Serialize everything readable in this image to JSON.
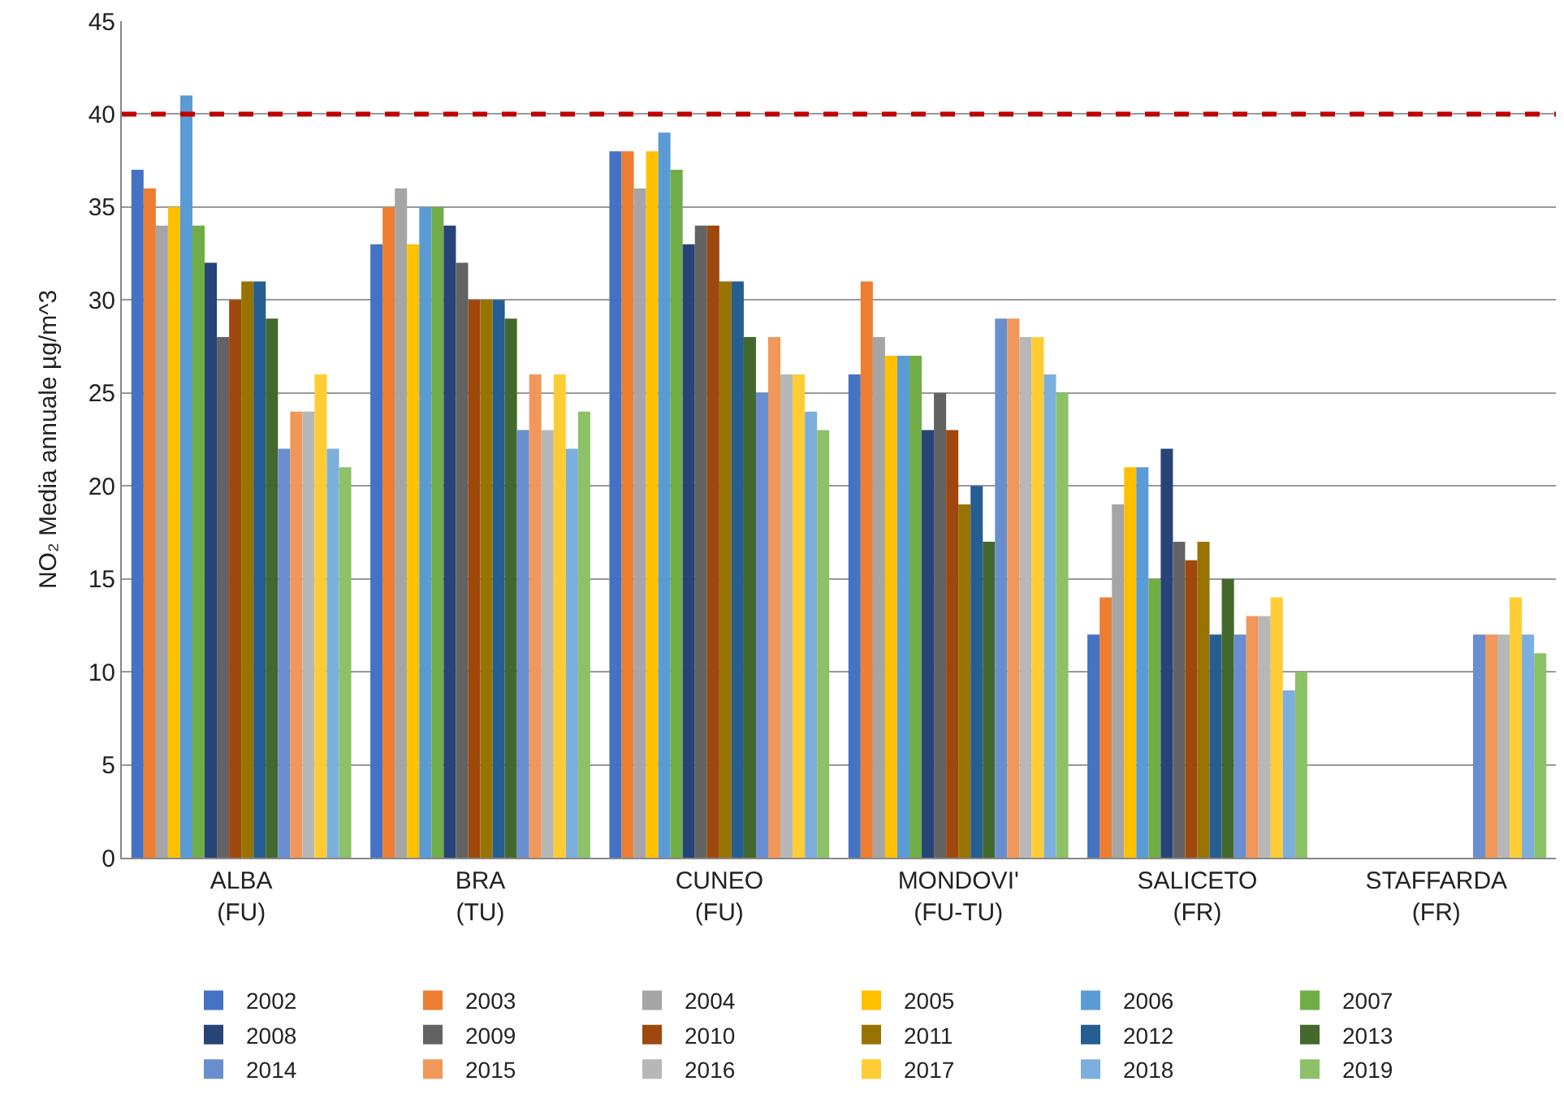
{
  "chart_data": {
    "type": "bar",
    "ylabel": "NO₂ Media annuale µg/m^3",
    "categories": [
      "ALBA\n(FU)",
      "BRA\n(TU)",
      "CUNEO\n(FU)",
      "MONDOVI'\n(FU-TU)",
      "SALICETO\n(FR)",
      "STAFFARDA\n(FR)"
    ],
    "series": [
      {
        "name": "2002",
        "color": "#4472c4",
        "values": [
          37,
          33,
          38,
          26,
          12,
          null
        ]
      },
      {
        "name": "2003",
        "color": "#ed7d31",
        "values": [
          36,
          35,
          38,
          31,
          14,
          null
        ]
      },
      {
        "name": "2004",
        "color": "#a5a5a5",
        "values": [
          34,
          36,
          36,
          28,
          19,
          null
        ]
      },
      {
        "name": "2005",
        "color": "#ffc000",
        "values": [
          35,
          33,
          38,
          27,
          21,
          null
        ]
      },
      {
        "name": "2006",
        "color": "#5b9bd5",
        "values": [
          41,
          35,
          39,
          27,
          21,
          null
        ]
      },
      {
        "name": "2007",
        "color": "#70ad47",
        "values": [
          34,
          35,
          37,
          27,
          15,
          null
        ]
      },
      {
        "name": "2008",
        "color": "#264478",
        "values": [
          32,
          34,
          33,
          23,
          22,
          null
        ]
      },
      {
        "name": "2009",
        "color": "#636363",
        "values": [
          28,
          32,
          34,
          25,
          17,
          null
        ]
      },
      {
        "name": "2010",
        "color": "#9e480e",
        "values": [
          30,
          30,
          34,
          23,
          16,
          null
        ]
      },
      {
        "name": "2011",
        "color": "#997300",
        "values": [
          31,
          30,
          31,
          19,
          17,
          null
        ]
      },
      {
        "name": "2012",
        "color": "#255e91",
        "values": [
          31,
          30,
          31,
          20,
          12,
          null
        ]
      },
      {
        "name": "2013",
        "color": "#43682b",
        "values": [
          29,
          29,
          28,
          17,
          15,
          null
        ]
      },
      {
        "name": "2014",
        "color": "#698ed0",
        "values": [
          22,
          23,
          25,
          29,
          12,
          12
        ]
      },
      {
        "name": "2015",
        "color": "#f1975a",
        "values": [
          24,
          26,
          28,
          29,
          13,
          12
        ]
      },
      {
        "name": "2016",
        "color": "#b7b7b7",
        "values": [
          24,
          23,
          26,
          28,
          13,
          12
        ]
      },
      {
        "name": "2017",
        "color": "#ffcd33",
        "values": [
          26,
          26,
          26,
          28,
          14,
          14
        ]
      },
      {
        "name": "2018",
        "color": "#7cafdd",
        "values": [
          22,
          22,
          24,
          26,
          9,
          12
        ]
      },
      {
        "name": "2019",
        "color": "#8cc168",
        "values": [
          21,
          24,
          23,
          25,
          10,
          11
        ]
      }
    ],
    "ylim": [
      0,
      45
    ],
    "yticks": [
      0,
      5,
      10,
      15,
      20,
      25,
      30,
      35,
      40,
      45
    ],
    "grid": "y",
    "legend": "bottom",
    "ref_lines": [
      {
        "axis": "y",
        "value": 40,
        "color": "#c00000",
        "line_style": "dashed"
      }
    ]
  }
}
